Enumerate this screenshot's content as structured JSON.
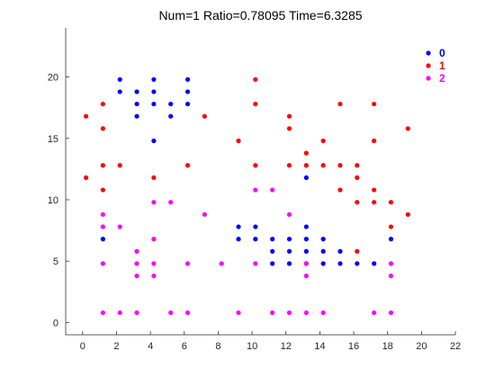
{
  "chart_data": {
    "type": "scatter",
    "title": "Num=1 Ratio=0.78095 Time=6.3285",
    "xlabel": "",
    "ylabel": "",
    "xlim": [
      -1,
      22
    ],
    "ylim": [
      -1,
      24
    ],
    "xticks": [
      0,
      2,
      4,
      6,
      8,
      10,
      12,
      14,
      16,
      18,
      20,
      22
    ],
    "yticks": [
      0,
      5,
      10,
      15,
      20
    ],
    "grid": false,
    "legend_position": "top-right",
    "series": [
      {
        "name": "0",
        "color": "#0000ff",
        "points": [
          [
            2.2,
            19.8
          ],
          [
            2.2,
            18.8
          ],
          [
            3.2,
            18.8
          ],
          [
            3.2,
            17.8
          ],
          [
            3.2,
            16.8
          ],
          [
            4.2,
            19.8
          ],
          [
            4.2,
            18.8
          ],
          [
            4.2,
            17.8
          ],
          [
            4.2,
            14.8
          ],
          [
            5.2,
            17.8
          ],
          [
            5.2,
            16.8
          ],
          [
            6.2,
            19.8
          ],
          [
            6.2,
            18.8
          ],
          [
            6.2,
            17.8
          ],
          [
            1.2,
            6.8
          ],
          [
            9.2,
            7.8
          ],
          [
            9.2,
            6.8
          ],
          [
            10.2,
            7.8
          ],
          [
            10.2,
            6.8
          ],
          [
            11.2,
            6.8
          ],
          [
            11.2,
            5.8
          ],
          [
            11.2,
            4.8
          ],
          [
            12.2,
            6.8
          ],
          [
            12.2,
            5.8
          ],
          [
            12.2,
            4.8
          ],
          [
            13.2,
            11.8
          ],
          [
            13.2,
            7.8
          ],
          [
            13.2,
            6.8
          ],
          [
            13.2,
            5.8
          ],
          [
            13.2,
            4.8
          ],
          [
            14.2,
            6.8
          ],
          [
            14.2,
            5.8
          ],
          [
            14.2,
            4.8
          ],
          [
            15.2,
            5.8
          ],
          [
            15.2,
            4.8
          ],
          [
            16.2,
            4.8
          ],
          [
            17.2,
            4.8
          ],
          [
            18.2,
            6.8
          ]
        ]
      },
      {
        "name": "1",
        "color": "#ff0000",
        "points": [
          [
            0.2,
            16.8
          ],
          [
            0.2,
            11.8
          ],
          [
            1.2,
            17.8
          ],
          [
            1.2,
            15.8
          ],
          [
            1.2,
            12.8
          ],
          [
            1.2,
            10.8
          ],
          [
            2.2,
            12.8
          ],
          [
            4.2,
            11.8
          ],
          [
            6.2,
            12.8
          ],
          [
            7.2,
            16.8
          ],
          [
            9.2,
            14.8
          ],
          [
            10.2,
            19.8
          ],
          [
            10.2,
            17.8
          ],
          [
            10.2,
            12.8
          ],
          [
            12.2,
            16.8
          ],
          [
            12.2,
            15.8
          ],
          [
            12.2,
            12.8
          ],
          [
            13.2,
            13.8
          ],
          [
            13.2,
            12.8
          ],
          [
            14.2,
            14.8
          ],
          [
            14.2,
            12.8
          ],
          [
            15.2,
            17.8
          ],
          [
            15.2,
            12.8
          ],
          [
            15.2,
            10.8
          ],
          [
            16.2,
            12.8
          ],
          [
            16.2,
            11.8
          ],
          [
            16.2,
            9.8
          ],
          [
            16.2,
            5.8
          ],
          [
            17.2,
            17.8
          ],
          [
            17.2,
            14.8
          ],
          [
            17.2,
            10.8
          ],
          [
            17.2,
            9.8
          ],
          [
            18.2,
            9.8
          ],
          [
            18.2,
            7.8
          ],
          [
            19.2,
            15.8
          ],
          [
            19.2,
            8.8
          ]
        ]
      },
      {
        "name": "2",
        "color": "#ff00ff",
        "points": [
          [
            1.2,
            8.8
          ],
          [
            1.2,
            7.8
          ],
          [
            1.2,
            4.8
          ],
          [
            1.2,
            0.8
          ],
          [
            2.2,
            7.8
          ],
          [
            2.2,
            0.8
          ],
          [
            3.2,
            5.8
          ],
          [
            3.2,
            4.8
          ],
          [
            3.2,
            3.8
          ],
          [
            3.2,
            0.8
          ],
          [
            4.2,
            9.8
          ],
          [
            4.2,
            6.8
          ],
          [
            4.2,
            4.8
          ],
          [
            4.2,
            3.8
          ],
          [
            5.2,
            9.8
          ],
          [
            5.2,
            0.8
          ],
          [
            6.2,
            4.8
          ],
          [
            6.2,
            0.8
          ],
          [
            7.2,
            8.8
          ],
          [
            8.2,
            4.8
          ],
          [
            9.2,
            0.8
          ],
          [
            10.2,
            10.8
          ],
          [
            10.2,
            4.8
          ],
          [
            11.2,
            10.8
          ],
          [
            11.2,
            0.8
          ],
          [
            12.2,
            8.8
          ],
          [
            12.2,
            0.8
          ],
          [
            13.2,
            4.8
          ],
          [
            13.2,
            3.8
          ],
          [
            13.2,
            0.8
          ],
          [
            14.2,
            0.8
          ],
          [
            17.2,
            0.8
          ],
          [
            18.2,
            4.8
          ],
          [
            18.2,
            3.8
          ],
          [
            18.2,
            0.8
          ]
        ]
      }
    ]
  }
}
